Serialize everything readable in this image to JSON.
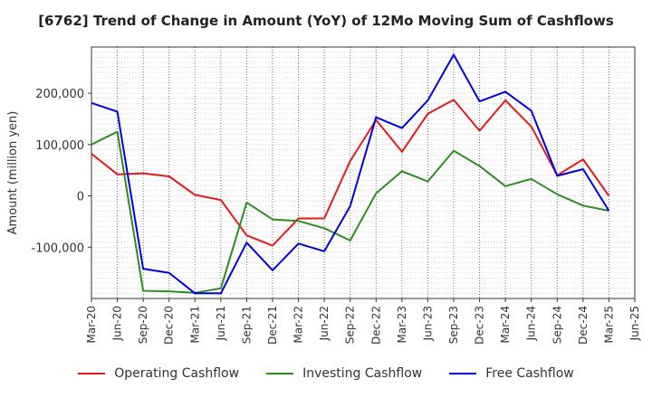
{
  "chart_data": {
    "type": "line",
    "title": "[6762]  Trend of Change in Amount (YoY) of 12Mo Moving Sum of Cashflows",
    "ylabel": "Amount (million yen)",
    "xlabel": "",
    "ylim": [
      -200000,
      290000
    ],
    "yticks": [
      -100000,
      0,
      100000,
      200000
    ],
    "ytick_labels": [
      "-100,000",
      "0",
      "100,000",
      "200,000"
    ],
    "categories": [
      "Mar-20",
      "Jun-20",
      "Sep-20",
      "Dec-20",
      "Mar-21",
      "Jun-21",
      "Sep-21",
      "Dec-21",
      "Mar-22",
      "Jun-22",
      "Sep-22",
      "Dec-22",
      "Mar-23",
      "Jun-23",
      "Sep-23",
      "Dec-23",
      "Mar-24",
      "Jun-24",
      "Sep-24",
      "Dec-24",
      "Mar-25",
      "Jun-25"
    ],
    "grid": true,
    "legend_position": "bottom",
    "series": [
      {
        "name": "Operating Cashflow",
        "color": "#e41a1c",
        "values": [
          82000,
          42000,
          44000,
          38000,
          2000,
          -8000,
          -77000,
          -97000,
          -44000,
          -44000,
          68000,
          148000,
          86000,
          160000,
          187000,
          127000,
          186000,
          135000,
          40000,
          71000,
          0,
          null
        ]
      },
      {
        "name": "Investing Cashflow",
        "color": "#2e8b22",
        "values": [
          100000,
          125000,
          -185000,
          -186000,
          -189000,
          -180000,
          -13000,
          -46000,
          -49000,
          -63000,
          -87000,
          5000,
          48000,
          28000,
          88000,
          58000,
          19000,
          33000,
          3000,
          -19000,
          -29000,
          null
        ]
      },
      {
        "name": "Free Cashflow",
        "color": "#0000e0",
        "values": [
          181000,
          164000,
          -142000,
          -150000,
          -190000,
          -190000,
          -91000,
          -145000,
          -93000,
          -108000,
          -20000,
          153000,
          132000,
          186000,
          275000,
          184000,
          203000,
          166000,
          39000,
          52000,
          -29000,
          null
        ]
      }
    ]
  }
}
